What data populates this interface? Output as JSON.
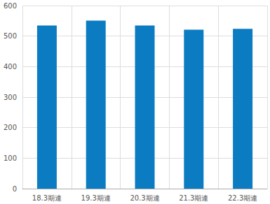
{
  "chart_data": {
    "type": "bar",
    "categories": [
      "18.3期連",
      "19.3期連",
      "20.3期連",
      "21.3期連",
      "22.3期連"
    ],
    "values": [
      535,
      551,
      535,
      521,
      524
    ],
    "color": "#0b7cc1",
    "ylim": [
      0,
      600
    ],
    "yticks": [
      0,
      100,
      200,
      300,
      400,
      500,
      600
    ],
    "grid": true
  }
}
